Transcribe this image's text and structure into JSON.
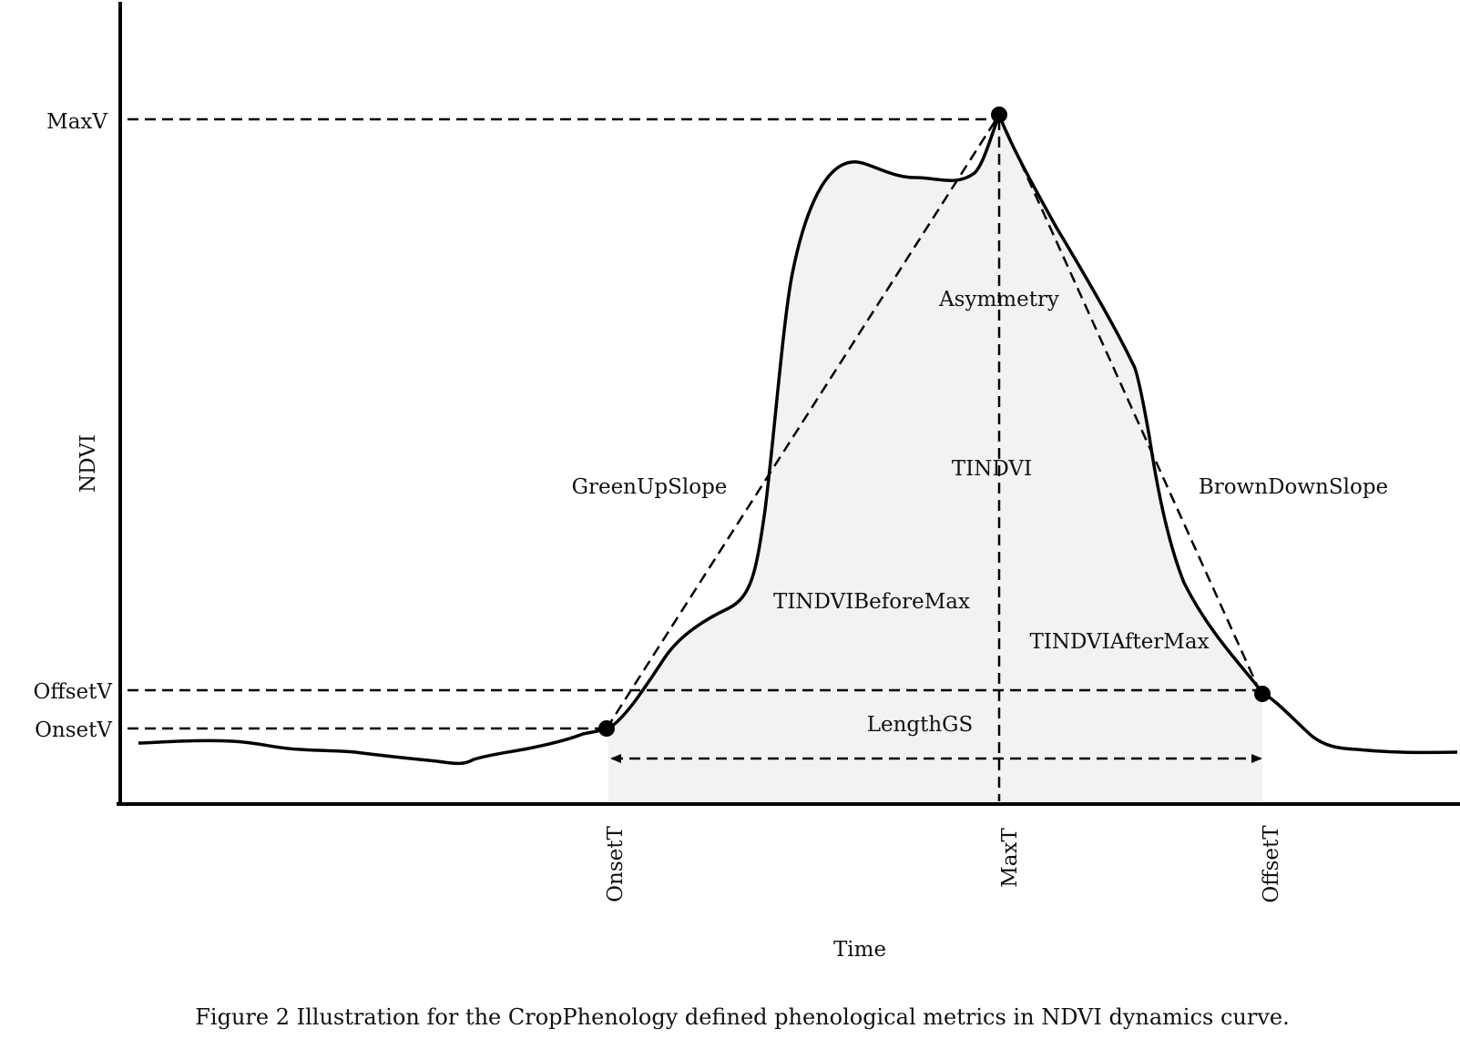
{
  "diagram": {
    "axes": {
      "y_label": "NDVI",
      "x_label": "Time"
    },
    "y_markers": {
      "max": "MaxV",
      "offset": "OffsetV",
      "onset": "OnsetV"
    },
    "x_markers": {
      "onset": "OnsetT",
      "max": "MaxT",
      "offset": "OffsetT"
    },
    "metrics": {
      "asymmetry": "Asymmetry",
      "tindvi": "TINDVI",
      "green_up_slope": "GreenUpSlope",
      "brown_down_slope": "BrownDownSlope",
      "tindvi_before_max": "TINDVIBeforeMax",
      "tindvi_after_max": "TINDVIAfterMax",
      "length_gs": "LengthGS"
    },
    "colors": {
      "curve": "#000000",
      "shaded_area": "#f2f2f2",
      "text": "#111111"
    }
  },
  "caption": "Figure 2 Illustration for the CropPhenology defined phenological metrics in NDVI dynamics curve."
}
